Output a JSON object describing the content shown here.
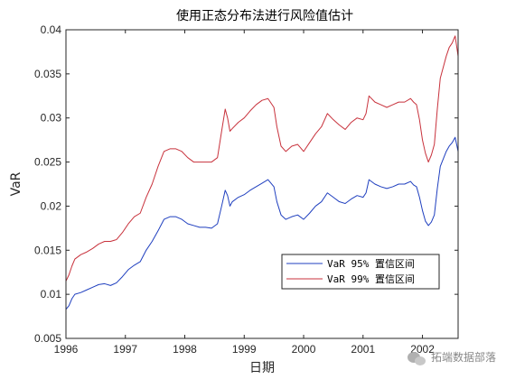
{
  "chart_data": {
    "type": "line",
    "title": "使用正态分布法进行风险值估计",
    "xlabel": "日期",
    "ylabel": "VaR",
    "xlim": [
      1996.0,
      2002.6
    ],
    "ylim": [
      0.005,
      0.04
    ],
    "x_ticks": [
      1996,
      1997,
      1998,
      1999,
      2000,
      2001,
      2002
    ],
    "x_tick_labels": [
      "1996",
      "1997",
      "1998",
      "1999",
      "2000",
      "2001",
      "2002"
    ],
    "y_ticks": [
      0.005,
      0.01,
      0.015,
      0.02,
      0.025,
      0.03,
      0.035,
      0.04
    ],
    "y_tick_labels": [
      "0.005",
      "0.01",
      "0.015",
      "0.02",
      "0.025",
      "0.03",
      "0.035",
      "0.04"
    ],
    "legend_position": "lower-right",
    "series": [
      {
        "name": "VaR 95% 置信区间",
        "color": "#1f3fbf",
        "x": [
          1996.0,
          1996.05,
          1996.1,
          1996.15,
          1996.25,
          1996.35,
          1996.45,
          1996.55,
          1996.65,
          1996.75,
          1996.85,
          1996.95,
          1997.05,
          1997.15,
          1997.25,
          1997.35,
          1997.45,
          1997.55,
          1997.65,
          1997.75,
          1997.85,
          1997.95,
          1998.05,
          1998.15,
          1998.25,
          1998.35,
          1998.45,
          1998.55,
          1998.62,
          1998.68,
          1998.72,
          1998.76,
          1998.8,
          1998.9,
          1999.0,
          1999.1,
          1999.2,
          1999.3,
          1999.4,
          1999.5,
          1999.55,
          1999.62,
          1999.7,
          1999.8,
          1999.9,
          2000.0,
          2000.1,
          2000.2,
          2000.3,
          2000.4,
          2000.5,
          2000.6,
          2000.7,
          2000.8,
          2000.9,
          2001.0,
          2001.05,
          2001.1,
          2001.2,
          2001.3,
          2001.4,
          2001.5,
          2001.6,
          2001.7,
          2001.8,
          2001.85,
          2001.9,
          2001.95,
          2002.0,
          2002.05,
          2002.1,
          2002.15,
          2002.2,
          2002.25,
          2002.3,
          2002.4,
          2002.45,
          2002.5,
          2002.55,
          2002.6
        ],
        "values": [
          0.0083,
          0.0087,
          0.0095,
          0.01,
          0.0102,
          0.0105,
          0.0108,
          0.0111,
          0.0112,
          0.011,
          0.0113,
          0.012,
          0.0128,
          0.0133,
          0.0137,
          0.015,
          0.016,
          0.0172,
          0.0185,
          0.0188,
          0.0188,
          0.0185,
          0.018,
          0.0178,
          0.0176,
          0.0176,
          0.0175,
          0.018,
          0.02,
          0.0218,
          0.0212,
          0.02,
          0.0205,
          0.021,
          0.0213,
          0.0218,
          0.0222,
          0.0226,
          0.023,
          0.0222,
          0.0205,
          0.019,
          0.0185,
          0.0188,
          0.019,
          0.0185,
          0.0192,
          0.02,
          0.0205,
          0.0215,
          0.021,
          0.0205,
          0.0203,
          0.0208,
          0.0212,
          0.021,
          0.0215,
          0.023,
          0.0225,
          0.0222,
          0.022,
          0.0222,
          0.0225,
          0.0225,
          0.0228,
          0.0224,
          0.0222,
          0.021,
          0.0195,
          0.0183,
          0.0178,
          0.0182,
          0.019,
          0.022,
          0.0245,
          0.0262,
          0.0268,
          0.0272,
          0.0278,
          0.0262
        ]
      },
      {
        "name": "VaR 99% 置信区间",
        "color": "#c8323c",
        "x": [
          1996.0,
          1996.05,
          1996.1,
          1996.15,
          1996.25,
          1996.35,
          1996.45,
          1996.55,
          1996.65,
          1996.75,
          1996.85,
          1996.95,
          1997.05,
          1997.15,
          1997.25,
          1997.35,
          1997.45,
          1997.55,
          1997.65,
          1997.75,
          1997.85,
          1997.95,
          1998.05,
          1998.15,
          1998.25,
          1998.35,
          1998.45,
          1998.55,
          1998.62,
          1998.68,
          1998.72,
          1998.76,
          1998.8,
          1998.9,
          1999.0,
          1999.1,
          1999.2,
          1999.3,
          1999.4,
          1999.5,
          1999.55,
          1999.62,
          1999.7,
          1999.8,
          1999.9,
          2000.0,
          2000.1,
          2000.2,
          2000.3,
          2000.4,
          2000.5,
          2000.6,
          2000.7,
          2000.8,
          2000.9,
          2001.0,
          2001.05,
          2001.1,
          2001.2,
          2001.3,
          2001.4,
          2001.5,
          2001.6,
          2001.7,
          2001.8,
          2001.85,
          2001.9,
          2001.95,
          2002.0,
          2002.05,
          2002.1,
          2002.15,
          2002.2,
          2002.25,
          2002.3,
          2002.4,
          2002.45,
          2002.5,
          2002.55,
          2002.6
        ],
        "values": [
          0.0115,
          0.0122,
          0.0132,
          0.014,
          0.0145,
          0.0148,
          0.0152,
          0.0157,
          0.016,
          0.016,
          0.0162,
          0.017,
          0.018,
          0.0188,
          0.0192,
          0.021,
          0.0225,
          0.0245,
          0.0262,
          0.0265,
          0.0265,
          0.0262,
          0.0255,
          0.025,
          0.025,
          0.025,
          0.025,
          0.0255,
          0.0285,
          0.031,
          0.03,
          0.0285,
          0.0288,
          0.0295,
          0.03,
          0.0308,
          0.0315,
          0.032,
          0.0322,
          0.0312,
          0.029,
          0.0268,
          0.0262,
          0.0268,
          0.027,
          0.0262,
          0.0272,
          0.0282,
          0.029,
          0.0305,
          0.0298,
          0.0292,
          0.0287,
          0.0295,
          0.03,
          0.0298,
          0.0305,
          0.0325,
          0.0318,
          0.0315,
          0.0312,
          0.0315,
          0.0318,
          0.0318,
          0.0322,
          0.0318,
          0.0315,
          0.0298,
          0.0275,
          0.026,
          0.025,
          0.0258,
          0.027,
          0.031,
          0.0345,
          0.037,
          0.038,
          0.0385,
          0.0393,
          0.037
        ]
      }
    ]
  },
  "watermark": {
    "icon": "wechat-icon",
    "text": "拓端数据部落"
  }
}
